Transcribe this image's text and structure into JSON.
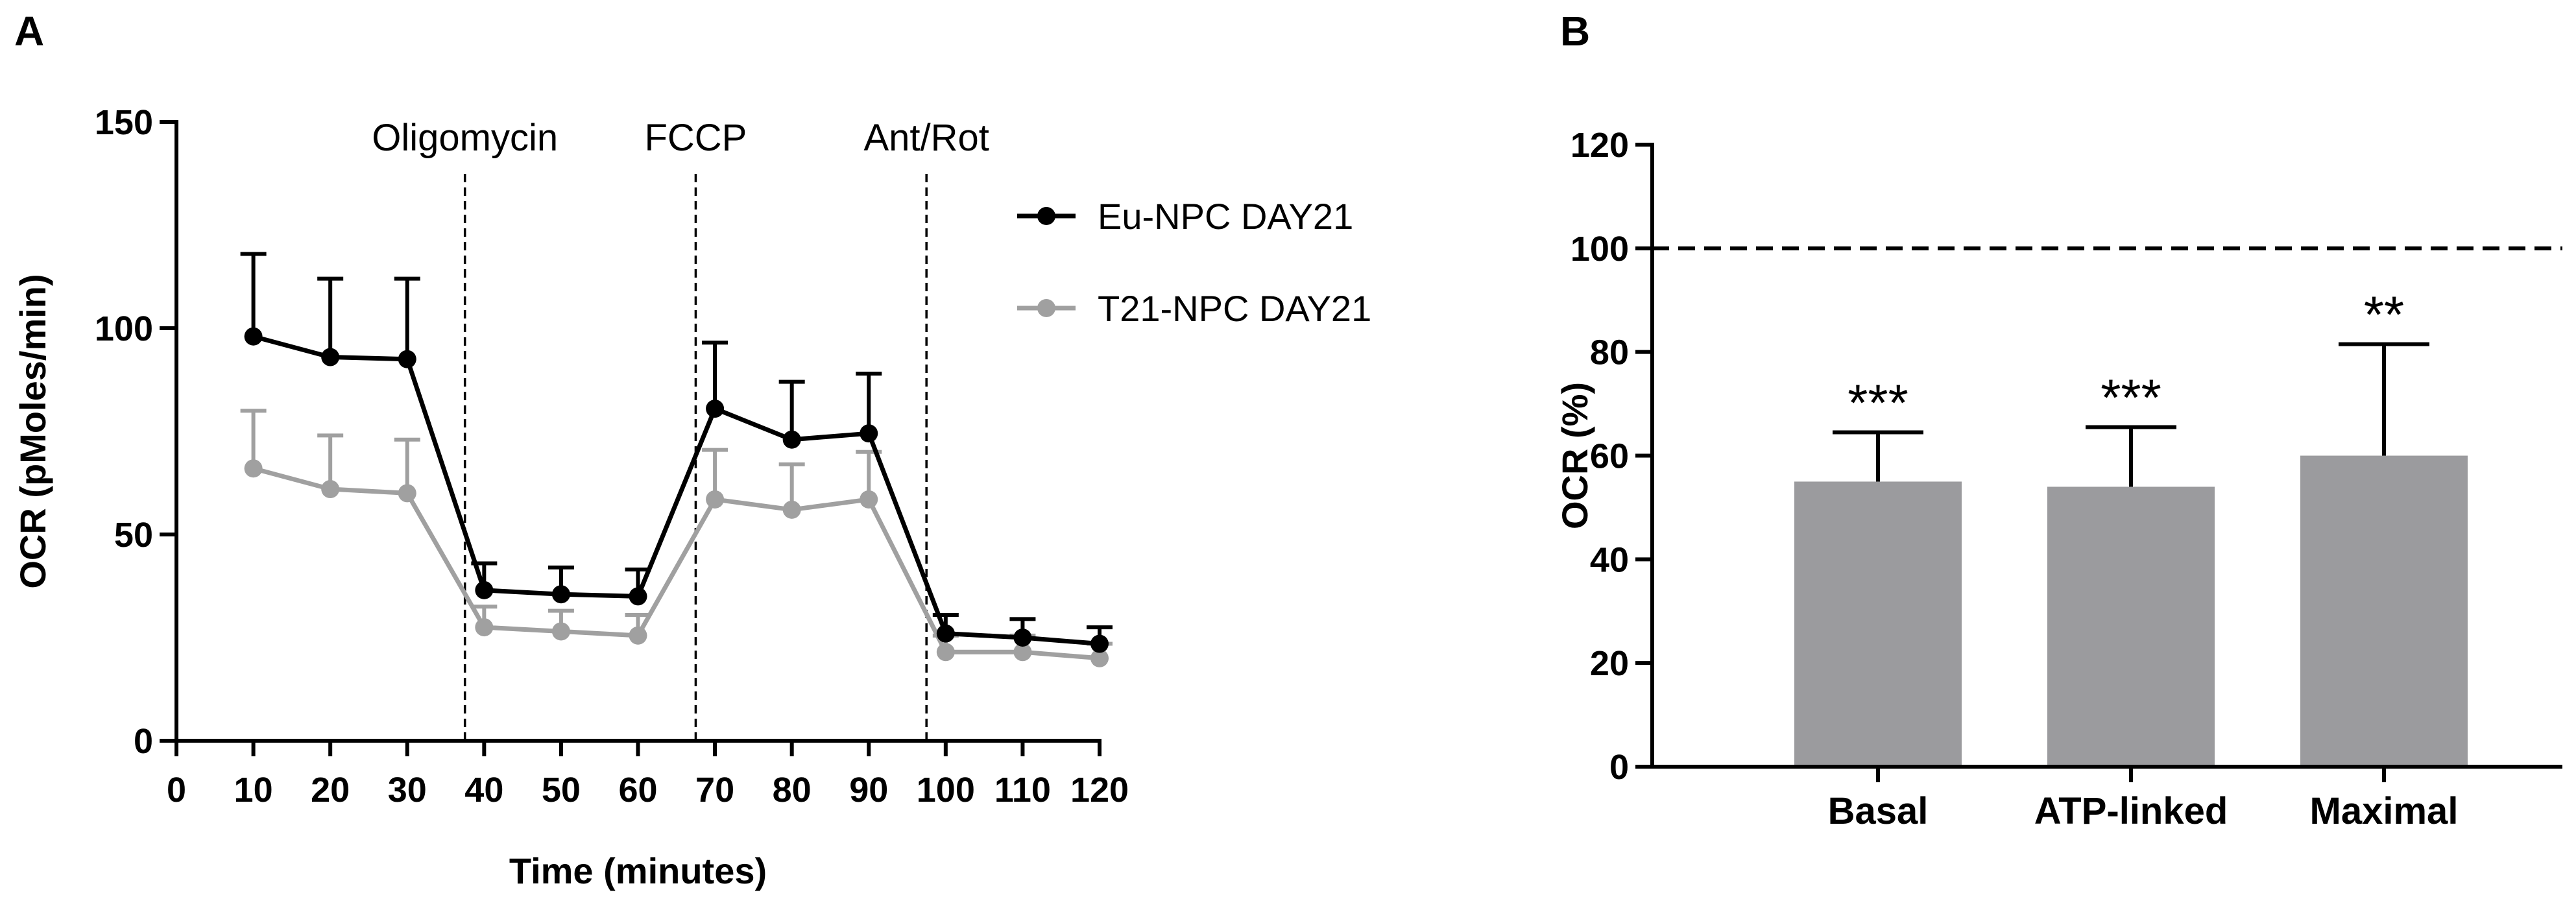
{
  "panels": {
    "a": "A",
    "b": "B"
  },
  "chart_data": [
    {
      "type": "line",
      "panel": "A",
      "xlabel": "Time (minutes)",
      "ylabel": "OCR (pMoles/min)",
      "xlim": [
        0,
        120
      ],
      "ylim": [
        0,
        150
      ],
      "xticks": [
        "0",
        "10",
        "20",
        "30",
        "40",
        "50",
        "60",
        "70",
        "80",
        "90",
        "100",
        "110",
        "120"
      ],
      "yticks": [
        "0",
        "50",
        "100",
        "150"
      ],
      "grid": false,
      "legend": "top-right",
      "markers": [
        {
          "label": "Oligomycin",
          "x": 37.5
        },
        {
          "label": "FCCP",
          "x": 67.5
        },
        {
          "label": "Ant/Rot",
          "x": 97.5
        }
      ],
      "x": [
        10,
        20,
        30,
        40,
        50,
        60,
        70,
        80,
        90,
        100,
        110,
        120
      ],
      "series": [
        {
          "name": "Eu-NPC DAY21",
          "color": "#000000",
          "values": [
            98,
            93,
            92.5,
            36.5,
            35.5,
            35,
            80.5,
            73,
            74.5,
            26,
            25,
            23.5
          ],
          "err": [
            20,
            19,
            19.5,
            6.5,
            6.5,
            6.5,
            16,
            14,
            14.5,
            4.5,
            4.5,
            4
          ]
        },
        {
          "name": "T21-NPC DAY21",
          "color": "#a0a0a0",
          "values": [
            66,
            61,
            60,
            27.5,
            26.5,
            25.5,
            58.5,
            56,
            58.5,
            21.5,
            21.5,
            20
          ],
          "err": [
            14,
            13,
            13,
            5,
            5,
            5,
            12,
            11,
            11.5,
            4,
            4,
            3.5
          ]
        }
      ]
    },
    {
      "type": "bar",
      "panel": "B",
      "ylabel": "OCR (%)",
      "xlabel": "",
      "categories": [
        "Basal",
        "ATP-linked",
        "Maximal"
      ],
      "values": [
        55,
        54,
        60
      ],
      "err": [
        9.5,
        11.5,
        21.5
      ],
      "significance": [
        "***",
        "***",
        "**"
      ],
      "ylim": [
        0,
        120
      ],
      "yticks": [
        "0",
        "20",
        "40",
        "60",
        "80",
        "100",
        "120"
      ],
      "reference_line": 100,
      "bar_color": "#9b9b9e",
      "grid": false
    }
  ]
}
